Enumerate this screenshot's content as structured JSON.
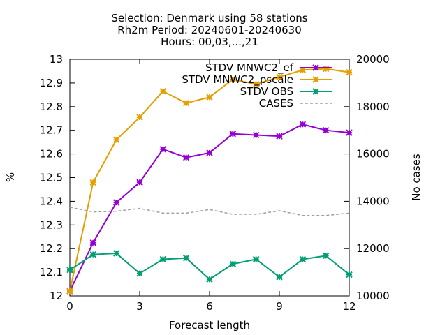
{
  "chart_data": {
    "type": "line",
    "title_lines": [
      "Selection: Denmark using    58 stations",
      "Rh2m   Period: 20240601-20240630",
      "Hours: 00,03,...,21"
    ],
    "xlabel": "Forecast length",
    "ylabel": "%",
    "y2label": "No cases",
    "xlim": [
      0,
      12
    ],
    "ylim": [
      12,
      13
    ],
    "y2lim": [
      10000,
      20000
    ],
    "x_ticks": [
      "0",
      "3",
      "6",
      "9",
      "12"
    ],
    "y_ticks": [
      "12",
      "12.1",
      "12.2",
      "12.3",
      "12.4",
      "12.5",
      "12.6",
      "12.7",
      "12.8",
      "12.9",
      "13"
    ],
    "y2_ticks": [
      "10000",
      "12000",
      "14000",
      "16000",
      "18000",
      "20000"
    ],
    "grid": false,
    "legend_position": "top-right",
    "x": [
      0,
      1,
      2,
      3,
      4,
      5,
      6,
      7,
      8,
      9,
      10,
      11,
      12
    ],
    "series": [
      {
        "name": "STDV MNWC2_ef",
        "color": "#9400d3",
        "axis": "y",
        "style": "solid",
        "values": [
          12.02,
          12.225,
          12.395,
          12.48,
          12.62,
          12.585,
          12.605,
          12.685,
          12.68,
          12.675,
          12.725,
          12.7,
          12.69
        ]
      },
      {
        "name": "STDV MNWC2_pscale",
        "color": "#e69f00",
        "axis": "y",
        "style": "solid",
        "values": [
          12.02,
          12.48,
          12.66,
          12.755,
          12.865,
          12.815,
          12.84,
          12.915,
          12.895,
          12.925,
          12.955,
          12.96,
          12.945
        ]
      },
      {
        "name": "STDV OBS",
        "color": "#009e73",
        "axis": "y",
        "style": "solid",
        "values": [
          12.11,
          12.175,
          12.18,
          12.095,
          12.155,
          12.16,
          12.07,
          12.135,
          12.155,
          12.08,
          12.155,
          12.17,
          12.09
        ]
      },
      {
        "name": "CASES",
        "color": "#a0a0a0",
        "axis": "y2",
        "style": "dashed",
        "values": [
          13750,
          13550,
          13580,
          13700,
          13500,
          13500,
          13650,
          13450,
          13450,
          13600,
          13400,
          13400,
          13500
        ]
      }
    ]
  }
}
